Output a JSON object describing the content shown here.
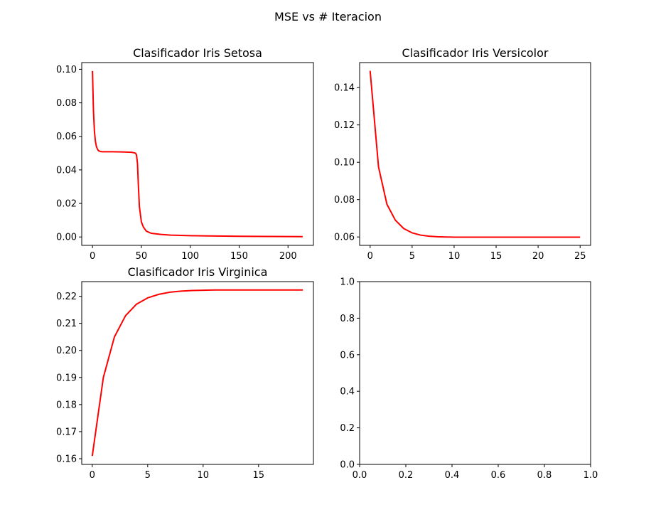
{
  "figure_title": "MSE vs # Iteracion",
  "line_color": "#ff0000",
  "chart_data": [
    {
      "type": "line",
      "title": "Clasificador Iris Setosa",
      "xlabel": "",
      "ylabel": "",
      "xlim": [
        -11,
        226
      ],
      "ylim": [
        -0.005,
        0.104
      ],
      "xticks": [
        0,
        50,
        100,
        150,
        200
      ],
      "xtick_labels": [
        "0",
        "50",
        "100",
        "150",
        "200"
      ],
      "yticks": [
        0.0,
        0.02,
        0.04,
        0.06,
        0.08,
        0.1
      ],
      "ytick_labels": [
        "0.00",
        "0.02",
        "0.04",
        "0.06",
        "0.08",
        "0.10"
      ],
      "grid": false,
      "series": [
        {
          "x": [
            0,
            1,
            2,
            3,
            4,
            5,
            6,
            8,
            10,
            15,
            20,
            30,
            40,
            44,
            45,
            46,
            47,
            48,
            50,
            52,
            55,
            60,
            70,
            80,
            100,
            120,
            150,
            180,
            215
          ],
          "y": [
            0.099,
            0.075,
            0.063,
            0.057,
            0.054,
            0.0525,
            0.0515,
            0.051,
            0.0508,
            0.0508,
            0.0508,
            0.0507,
            0.0505,
            0.05,
            0.049,
            0.044,
            0.03,
            0.018,
            0.009,
            0.006,
            0.0035,
            0.0022,
            0.0015,
            0.0011,
            0.0008,
            0.0006,
            0.0004,
            0.0003,
            0.0002
          ]
        }
      ]
    },
    {
      "type": "line",
      "title": "Clasificador Iris Versicolor",
      "xlabel": "",
      "ylabel": "",
      "xlim": [
        -1.25,
        26.25
      ],
      "ylim": [
        0.0555,
        0.1534
      ],
      "xticks": [
        0,
        5,
        10,
        15,
        20,
        25
      ],
      "xtick_labels": [
        "0",
        "5",
        "10",
        "15",
        "20",
        "25"
      ],
      "yticks": [
        0.06,
        0.08,
        0.1,
        0.12,
        0.14
      ],
      "ytick_labels": [
        "0.06",
        "0.08",
        "0.10",
        "0.12",
        "0.14"
      ],
      "grid": false,
      "series": [
        {
          "x": [
            0,
            1,
            2,
            3,
            4,
            5,
            6,
            7,
            8,
            9,
            10,
            11,
            12,
            13,
            14,
            15,
            16,
            17,
            18,
            19,
            20,
            21,
            22,
            23,
            24,
            25
          ],
          "y": [
            0.149,
            0.0975,
            0.0775,
            0.069,
            0.0645,
            0.0622,
            0.061,
            0.0604,
            0.0601,
            0.06,
            0.0599,
            0.0599,
            0.0599,
            0.0599,
            0.0599,
            0.0599,
            0.0599,
            0.0599,
            0.0599,
            0.0599,
            0.0599,
            0.0599,
            0.0599,
            0.0599,
            0.0599,
            0.0599
          ]
        }
      ]
    },
    {
      "type": "line",
      "title": "Clasificador Iris Virginica",
      "xlabel": "",
      "ylabel": "",
      "xlim": [
        -0.95,
        19.95
      ],
      "ylim": [
        0.1579,
        0.2254
      ],
      "xticks": [
        0,
        5,
        10,
        15
      ],
      "xtick_labels": [
        "0",
        "5",
        "10",
        "15"
      ],
      "yticks": [
        0.16,
        0.17,
        0.18,
        0.19,
        0.2,
        0.21,
        0.22
      ],
      "ytick_labels": [
        "0.16",
        "0.17",
        "0.18",
        "0.19",
        "0.20",
        "0.21",
        "0.22"
      ],
      "grid": false,
      "series": [
        {
          "x": [
            0,
            1,
            2,
            3,
            4,
            5,
            6,
            7,
            8,
            9,
            10,
            11,
            12,
            13,
            14,
            15,
            16,
            17,
            18,
            19
          ],
          "y": [
            0.161,
            0.19,
            0.205,
            0.2128,
            0.2171,
            0.2194,
            0.2207,
            0.2215,
            0.2219,
            0.2221,
            0.2222,
            0.2223,
            0.2223,
            0.2223,
            0.2223,
            0.2223,
            0.2223,
            0.2223,
            0.2223,
            0.2223
          ]
        }
      ]
    },
    {
      "type": "line",
      "title": "",
      "xlabel": "",
      "ylabel": "",
      "xlim": [
        0,
        1
      ],
      "ylim": [
        0,
        1
      ],
      "xticks": [
        0,
        0.2,
        0.4,
        0.6,
        0.8,
        1.0
      ],
      "xtick_labels": [
        "0.0",
        "0.2",
        "0.4",
        "0.6",
        "0.8",
        "1.0"
      ],
      "yticks": [
        0,
        0.2,
        0.4,
        0.6,
        0.8,
        1.0
      ],
      "ytick_labels": [
        "0.0",
        "0.2",
        "0.4",
        "0.6",
        "0.8",
        "1.0"
      ],
      "grid": false,
      "series": []
    }
  ]
}
